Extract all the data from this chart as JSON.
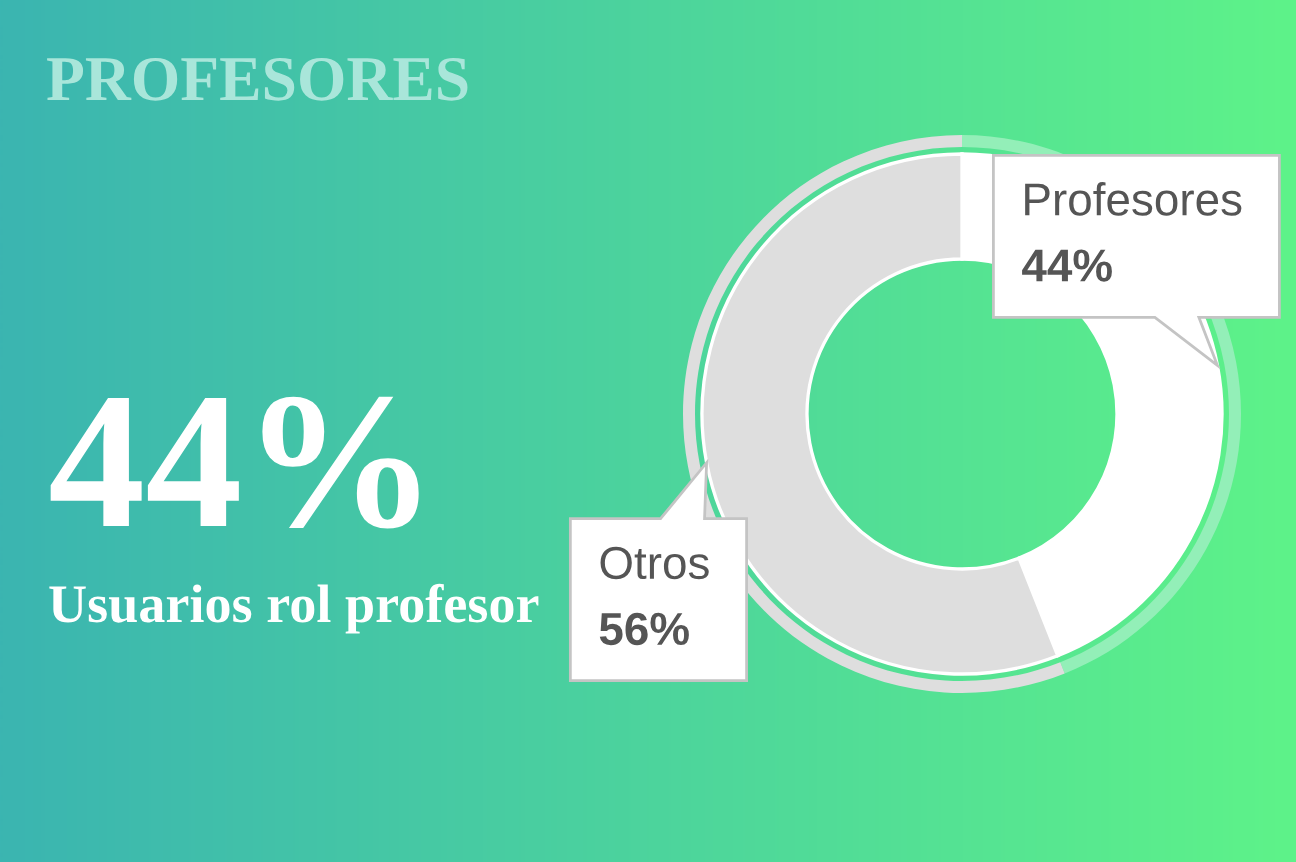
{
  "chart_data": {
    "type": "donut",
    "title": "PROFESORES",
    "categories": [
      "Profesores",
      "Otros"
    ],
    "series": [
      {
        "values": [
          44,
          56
        ],
        "colors": [
          "#ffffff",
          "#dedede"
        ],
        "value_labels": [
          "44%",
          "56%"
        ]
      },
      {
        "values": [
          44,
          56
        ],
        "colors": [
          "#93efb8",
          "#dedede"
        ]
      }
    ],
    "annotations": [
      "44%",
      "Usuarios rol profesor"
    ]
  }
}
